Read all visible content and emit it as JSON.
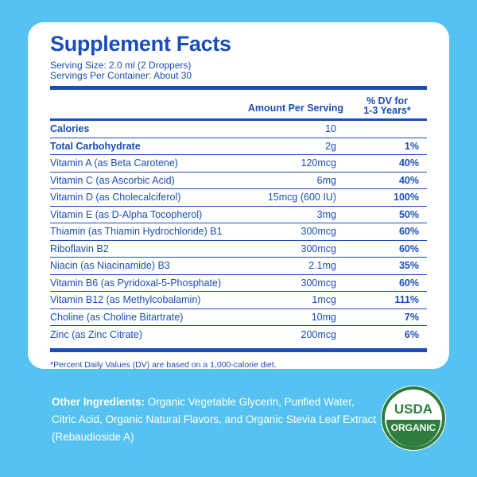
{
  "title": "Supplement Facts",
  "serving_size": "Serving Size: 2.0 ml (2 Droppers)",
  "servings_per_container": "Servings Per Container: About 30",
  "header": {
    "amount": "Amount Per Serving",
    "dv_line1": "% DV for",
    "dv_line2": "1-3 Years*"
  },
  "rows": [
    {
      "name": "Calories",
      "amount": "10",
      "dv": ""
    },
    {
      "name": "Total Carbohydrate",
      "amount": "2g",
      "dv": "1%"
    },
    {
      "name": "Vitamin A (as Beta Carotene)",
      "amount": "120mcg",
      "dv": "40%"
    },
    {
      "name": "Vitamin C (as Ascorbic Acid)",
      "amount": "6mg",
      "dv": "40%"
    },
    {
      "name": "Vitamin D (as Cholecalciferol)",
      "amount": "15mcg (600 IU)",
      "dv": "100%"
    },
    {
      "name": "Vitamin E (as D-Alpha Tocopherol)",
      "amount": "3mg",
      "dv": "50%"
    },
    {
      "name": "Thiamin (as Thiamin Hydrochloride) B1",
      "amount": "300mcg",
      "dv": "60%"
    },
    {
      "name": "Riboflavin B2",
      "amount": "300mcg",
      "dv": "60%"
    },
    {
      "name": "Niacin (as Niacinamide) B3",
      "amount": "2.1mg",
      "dv": "35%"
    },
    {
      "name": "Vitamin B6 (as Pyridoxal-5-Phosphate)",
      "amount": "300mcg",
      "dv": "60%"
    },
    {
      "name": "Vitamin B12 (as Methylcobalamin)",
      "amount": "1mcg",
      "dv": "111%"
    },
    {
      "name": "Choline (as Choline Bitartrate)",
      "amount": "10mg",
      "dv": "7%"
    },
    {
      "name": "Zinc (as Zinc Citrate)",
      "amount": "200mcg",
      "dv": "6%"
    }
  ],
  "footnote": "*Percent Daily Values (DV) are based on a 1,000-calorie diet.",
  "ingredients": {
    "label": "Other Ingredients:",
    "text": " Organic Vegetable Glycerin, Purified Water, Citric Acid, Organic Natural Flavors, and Organic Stevia Leaf Extract (Rebaudioside A)"
  },
  "seal": {
    "top": "USDA",
    "bottom": "ORGANIC"
  },
  "colors": {
    "background": "#55c2f1",
    "text_blue": "#1b4db8",
    "seal_green": "#2e7d3c"
  }
}
